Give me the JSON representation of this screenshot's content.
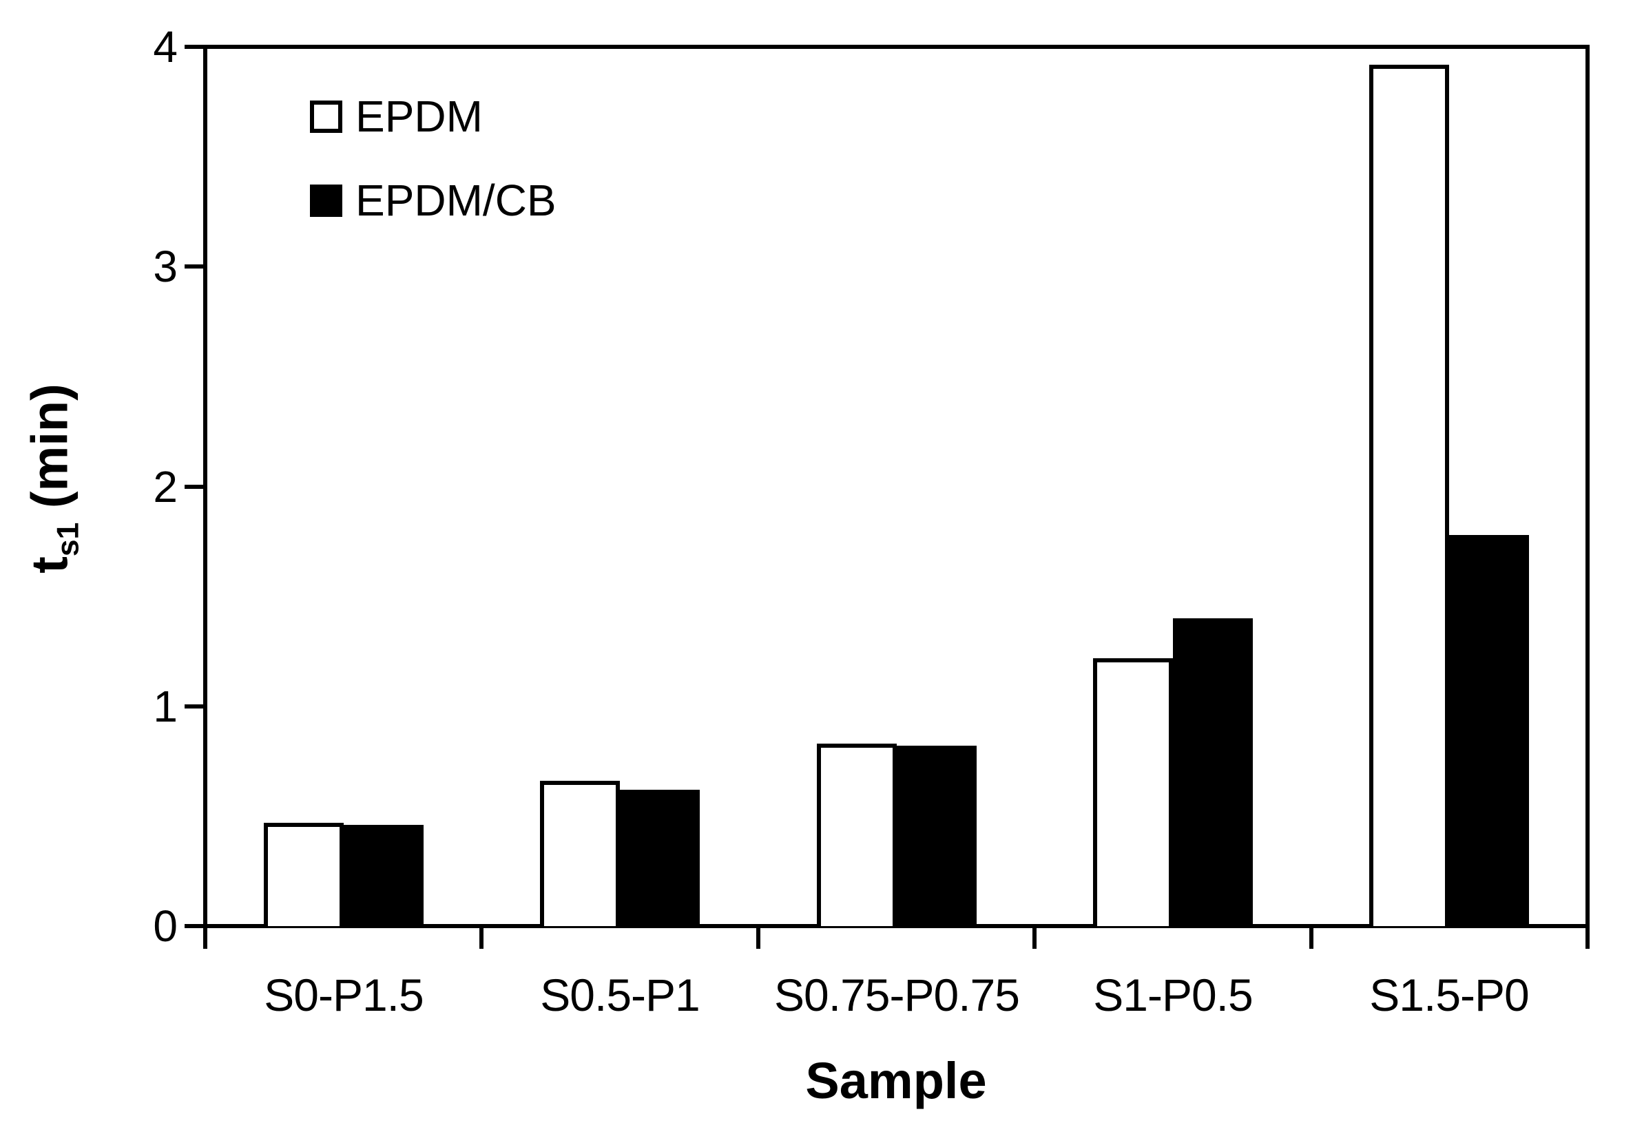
{
  "chart_data": {
    "type": "bar",
    "title": "",
    "xlabel": "Sample",
    "ylabel": {
      "main": "t",
      "sub": "s1",
      "unit": " (min)"
    },
    "ylim": [
      0,
      4
    ],
    "yticks": [
      "0",
      "1",
      "2",
      "3",
      "4"
    ],
    "grid": false,
    "legend_position": "top-left-inside",
    "categories": [
      "S0-P1.5",
      "S0.5-P1",
      "S0.75-P0.75",
      "S1-P0.5",
      "S1.5-P0"
    ],
    "series": [
      {
        "name": "EPDM",
        "style": "hollow",
        "values": [
          0.47,
          0.66,
          0.83,
          1.22,
          3.92
        ]
      },
      {
        "name": "EPDM/CB",
        "style": "filled",
        "values": [
          0.46,
          0.62,
          0.82,
          1.4,
          1.78
        ]
      }
    ],
    "colors": {
      "epdm_bar_fill": "#ffffff",
      "epdm_cb_bar_fill": "#000000",
      "axis": "#000000",
      "text": "#000000",
      "background": "#ffffff"
    }
  }
}
